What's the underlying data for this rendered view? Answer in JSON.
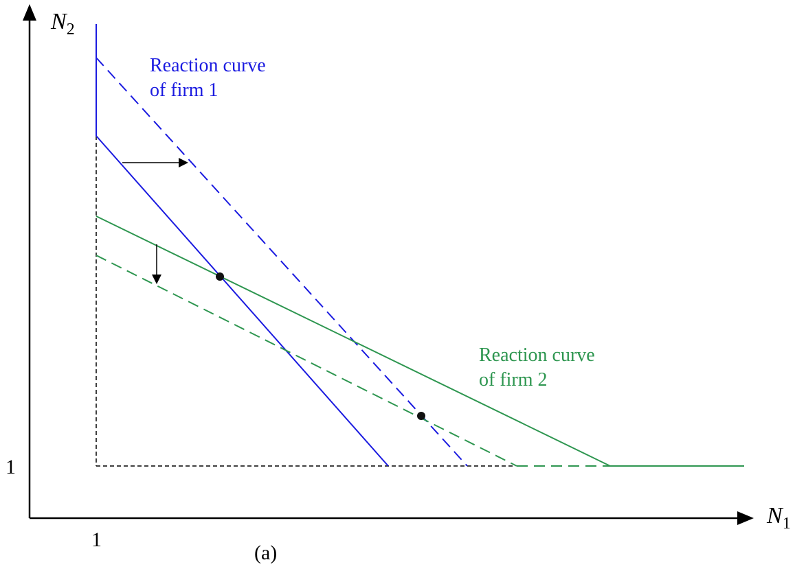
{
  "axes": {
    "y_label": "N",
    "y_label_sub": "2",
    "x_label": "N",
    "x_label_sub": "1",
    "y_tick_label": "1",
    "x_tick_label": "1"
  },
  "caption": "(a)",
  "firm1": {
    "label_line1": "Reaction curve",
    "label_line2": "of firm 1",
    "color": "#1a1ae0"
  },
  "firm2": {
    "label_line1": "Reaction curve",
    "label_line2": "of firm 2",
    "color": "#2e9650"
  },
  "colors": {
    "axis": "#000000",
    "boundary": "#000000",
    "equilibrium": "#111111"
  }
}
